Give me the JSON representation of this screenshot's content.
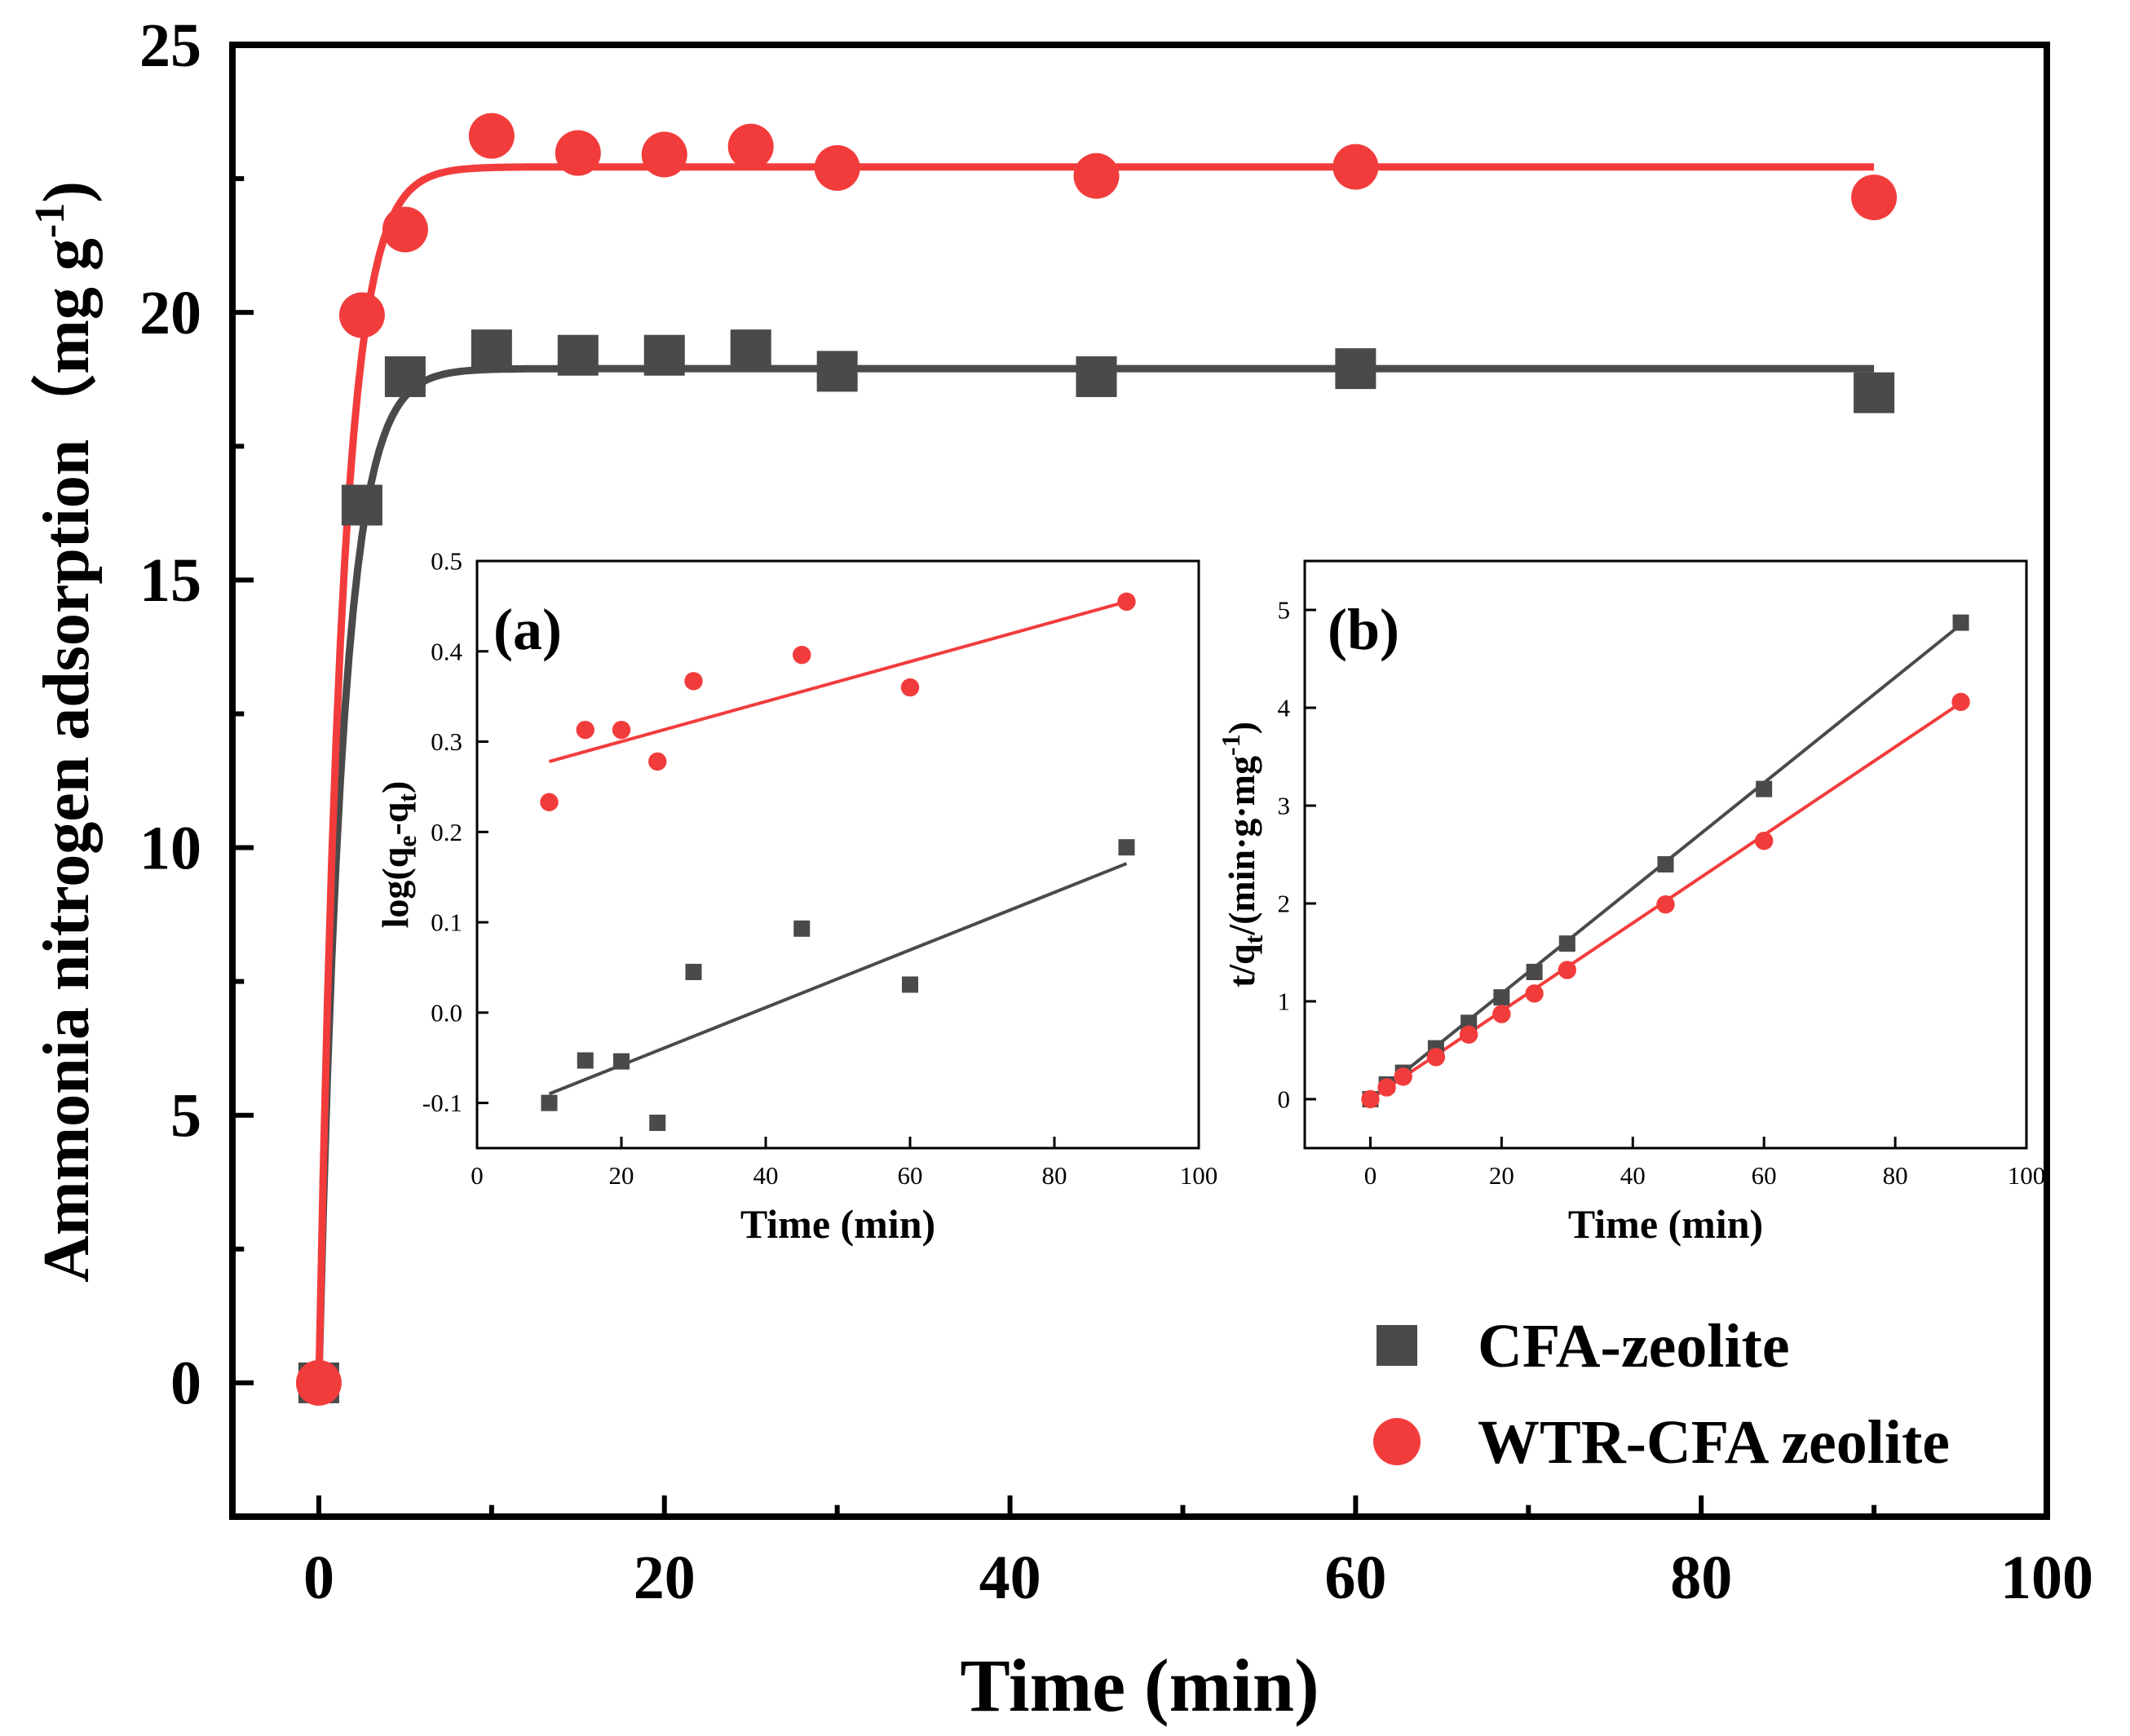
{
  "colors": {
    "cfa": "#4a4a4a",
    "wtr": "#f23c3c",
    "axis": "#000000"
  },
  "chart_data": [
    {
      "id": "main",
      "type": "scatter",
      "xlabel": "Time (min)",
      "ylabel": "Ammonia nitrogen adsorption（mg g",
      "ylabel_sup": "-1",
      "ylabel_close": ")",
      "xlim": [
        -5,
        100
      ],
      "ylim": [
        -2.5,
        25
      ],
      "xticks": [
        0,
        20,
        40,
        60,
        80,
        100
      ],
      "xtick_labels": [
        "0",
        "20",
        "40",
        "60",
        "80",
        "100"
      ],
      "yticks": [
        0,
        5,
        10,
        15,
        20,
        25
      ],
      "ytick_labels": [
        "0",
        "5",
        "10",
        "15",
        "20",
        "25"
      ],
      "legend": {
        "position": "bottom-right",
        "entries": [
          {
            "label": "CFA-zeolite",
            "marker": "square",
            "series": 0
          },
          {
            "label": "WTR-CFA zeolite",
            "marker": "circle",
            "series": 1
          }
        ]
      },
      "series": [
        {
          "name": "CFA-zeolite",
          "marker": "square",
          "x": [
            0,
            2.5,
            5,
            10,
            15,
            20,
            25,
            30,
            45,
            60,
            90
          ],
          "y": [
            0,
            16.4,
            18.8,
            19.3,
            19.2,
            19.2,
            19.3,
            18.9,
            18.8,
            18.95,
            18.5
          ],
          "fit": {
            "model": "exponential",
            "qe": 18.95,
            "k": 0.72
          }
        },
        {
          "name": "WTR-CFA zeolite",
          "marker": "circle",
          "x": [
            0,
            2.5,
            5,
            10,
            15,
            20,
            25,
            30,
            45,
            60,
            90
          ],
          "y": [
            0,
            19.95,
            21.55,
            23.3,
            22.98,
            22.95,
            23.1,
            22.7,
            22.55,
            22.72,
            22.15
          ],
          "fit": {
            "model": "exponential",
            "qe": 22.72,
            "k": 0.75
          }
        }
      ]
    },
    {
      "id": "inset-a",
      "type": "scatter",
      "label": "(a)",
      "xlabel": "Time (min)",
      "ylabel": "log(q",
      "ylabel_sub1": "e",
      "ylabel_mid": "-q",
      "ylabel_sub2": "t",
      "ylabel_close": ")",
      "xlim": [
        0,
        100
      ],
      "ylim": [
        -0.15,
        0.5
      ],
      "xticks": [
        0,
        20,
        40,
        60,
        80,
        100
      ],
      "xtick_labels": [
        "0",
        "20",
        "40",
        "60",
        "80",
        "100"
      ],
      "yticks": [
        -0.1,
        0.0,
        0.1,
        0.2,
        0.3,
        0.4,
        0.5
      ],
      "ytick_labels": [
        "-0.1",
        "0.0",
        "0.1",
        "0.2",
        "0.3",
        "0.4",
        "0.5"
      ],
      "series": [
        {
          "name": "CFA-zeolite",
          "marker": "square",
          "x": [
            10,
            15,
            20,
            25,
            30,
            45,
            60,
            90
          ],
          "y": [
            -0.1,
            -0.053,
            -0.054,
            -0.122,
            0.045,
            0.093,
            0.031,
            0.183
          ],
          "fit": {
            "model": "linear",
            "x": [
              10,
              90
            ],
            "y": [
              -0.09,
              0.165
            ]
          }
        },
        {
          "name": "WTR-CFA zeolite",
          "marker": "circle",
          "x": [
            10,
            15,
            20,
            25,
            30,
            45,
            60,
            90
          ],
          "y": [
            0.233,
            0.313,
            0.313,
            0.278,
            0.367,
            0.396,
            0.36,
            0.455
          ],
          "fit": {
            "model": "linear",
            "x": [
              10,
              90
            ],
            "y": [
              0.278,
              0.455
            ]
          }
        }
      ]
    },
    {
      "id": "inset-b",
      "type": "scatter",
      "label": "(b)",
      "xlabel": "Time (min)",
      "ylabel": "t/q",
      "ylabel_sub": "t",
      "ylabel_mid": "/(min·g·mg",
      "ylabel_sup": "-1",
      "ylabel_close": ")",
      "xlim": [
        -10,
        100
      ],
      "ylim": [
        -0.5,
        5.5
      ],
      "xticks": [
        0,
        20,
        40,
        60,
        80,
        100
      ],
      "xtick_labels": [
        "0",
        "20",
        "40",
        "60",
        "80",
        "100"
      ],
      "yticks": [
        0,
        1,
        2,
        3,
        4,
        5
      ],
      "ytick_labels": [
        "0",
        "1",
        "2",
        "3",
        "4",
        "5"
      ],
      "series": [
        {
          "name": "CFA-zeolite",
          "marker": "square",
          "x": [
            0,
            2.5,
            5,
            10,
            15,
            20,
            25,
            30,
            45,
            60,
            90
          ],
          "y": [
            0,
            0.15,
            0.27,
            0.52,
            0.78,
            1.04,
            1.3,
            1.59,
            2.4,
            3.17,
            4.87
          ],
          "fit": {
            "model": "linear",
            "x": [
              0,
              90
            ],
            "y": [
              0,
              4.85
            ]
          }
        },
        {
          "name": "WTR-CFA zeolite",
          "marker": "circle",
          "x": [
            0,
            2.5,
            5,
            10,
            15,
            20,
            25,
            30,
            45,
            60,
            90
          ],
          "y": [
            0,
            0.12,
            0.23,
            0.43,
            0.66,
            0.87,
            1.08,
            1.32,
            1.99,
            2.64,
            4.06
          ],
          "fit": {
            "model": "linear",
            "x": [
              0,
              90
            ],
            "y": [
              0,
              4.05
            ]
          }
        }
      ]
    }
  ]
}
